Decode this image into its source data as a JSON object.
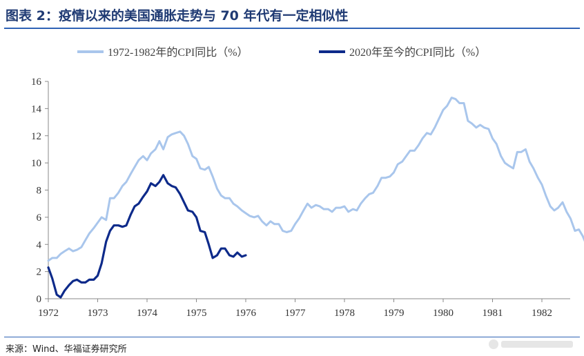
{
  "header": {
    "title": "图表 2：疫情以来的美国通胀走势与 70 年代有一定相似性"
  },
  "footer": {
    "source": "来源：Wind、华福证券研究所"
  },
  "chart_data": {
    "type": "line",
    "title": "图表 2：疫情以来的美国通胀走势与 70 年代有一定相似性",
    "xlabel": "",
    "ylabel": "",
    "ylim": [
      0,
      16
    ],
    "xlim": [
      1972,
      1982.6
    ],
    "yticks": [
      0,
      2,
      4,
      6,
      8,
      10,
      12,
      14,
      16
    ],
    "xticks": [
      1972,
      1973,
      1974,
      1975,
      1976,
      1977,
      1978,
      1979,
      1980,
      1981,
      1982
    ],
    "grid": false,
    "legend_position": "top",
    "series": [
      {
        "name": "1972-1982年的CPI同比（%）",
        "color": "#a9c6ec",
        "points": [
          [
            1972.0,
            2.8
          ],
          [
            1972.08,
            3.0
          ],
          [
            1972.17,
            3.0
          ],
          [
            1972.25,
            3.3
          ],
          [
            1972.33,
            3.5
          ],
          [
            1972.42,
            3.7
          ],
          [
            1972.5,
            3.5
          ],
          [
            1972.58,
            3.6
          ],
          [
            1972.67,
            3.8
          ],
          [
            1972.75,
            4.3
          ],
          [
            1972.83,
            4.8
          ],
          [
            1972.92,
            5.2
          ],
          [
            1973.0,
            5.6
          ],
          [
            1973.08,
            6.0
          ],
          [
            1973.17,
            5.8
          ],
          [
            1973.25,
            7.4
          ],
          [
            1973.33,
            7.4
          ],
          [
            1973.42,
            7.8
          ],
          [
            1973.5,
            8.3
          ],
          [
            1973.58,
            8.6
          ],
          [
            1973.67,
            9.2
          ],
          [
            1973.75,
            9.7
          ],
          [
            1973.83,
            10.2
          ],
          [
            1973.92,
            10.5
          ],
          [
            1974.0,
            10.2
          ],
          [
            1974.08,
            10.7
          ],
          [
            1974.17,
            11.0
          ],
          [
            1974.25,
            11.6
          ],
          [
            1974.33,
            11.0
          ],
          [
            1974.42,
            11.9
          ],
          [
            1974.5,
            12.1
          ],
          [
            1974.58,
            12.2
          ],
          [
            1974.67,
            12.3
          ],
          [
            1974.75,
            12.0
          ],
          [
            1974.83,
            11.4
          ],
          [
            1974.92,
            10.5
          ],
          [
            1975.0,
            10.3
          ],
          [
            1975.08,
            9.6
          ],
          [
            1975.17,
            9.5
          ],
          [
            1975.25,
            9.7
          ],
          [
            1975.33,
            9.0
          ],
          [
            1975.42,
            8.1
          ],
          [
            1975.5,
            7.6
          ],
          [
            1975.58,
            7.4
          ],
          [
            1975.67,
            7.4
          ],
          [
            1975.75,
            7.0
          ],
          [
            1975.83,
            6.8
          ],
          [
            1975.92,
            6.5
          ],
          [
            1976.0,
            6.3
          ],
          [
            1976.08,
            6.1
          ],
          [
            1976.17,
            6.0
          ],
          [
            1976.25,
            6.1
          ],
          [
            1976.33,
            5.7
          ],
          [
            1976.42,
            5.4
          ],
          [
            1976.5,
            5.7
          ],
          [
            1976.58,
            5.5
          ],
          [
            1976.67,
            5.5
          ],
          [
            1976.75,
            5.0
          ],
          [
            1976.83,
            4.9
          ],
          [
            1976.92,
            5.0
          ],
          [
            1977.0,
            5.5
          ],
          [
            1977.08,
            5.9
          ],
          [
            1977.17,
            6.5
          ],
          [
            1977.25,
            7.0
          ],
          [
            1977.33,
            6.7
          ],
          [
            1977.42,
            6.9
          ],
          [
            1977.5,
            6.8
          ],
          [
            1977.58,
            6.6
          ],
          [
            1977.67,
            6.6
          ],
          [
            1977.75,
            6.4
          ],
          [
            1977.83,
            6.7
          ],
          [
            1977.92,
            6.7
          ],
          [
            1978.0,
            6.8
          ],
          [
            1978.08,
            6.4
          ],
          [
            1978.17,
            6.6
          ],
          [
            1978.25,
            6.5
          ],
          [
            1978.33,
            7.0
          ],
          [
            1978.42,
            7.4
          ],
          [
            1978.5,
            7.7
          ],
          [
            1978.58,
            7.8
          ],
          [
            1978.67,
            8.3
          ],
          [
            1978.75,
            8.9
          ],
          [
            1978.83,
            8.9
          ],
          [
            1978.92,
            9.0
          ],
          [
            1979.0,
            9.3
          ],
          [
            1979.08,
            9.9
          ],
          [
            1979.17,
            10.1
          ],
          [
            1979.25,
            10.5
          ],
          [
            1979.33,
            10.9
          ],
          [
            1979.42,
            10.9
          ],
          [
            1979.5,
            11.3
          ],
          [
            1979.58,
            11.8
          ],
          [
            1979.67,
            12.2
          ],
          [
            1979.75,
            12.1
          ],
          [
            1979.83,
            12.6
          ],
          [
            1979.92,
            13.3
          ],
          [
            1980.0,
            13.9
          ],
          [
            1980.08,
            14.2
          ],
          [
            1980.17,
            14.8
          ],
          [
            1980.25,
            14.7
          ],
          [
            1980.33,
            14.4
          ],
          [
            1980.42,
            14.4
          ],
          [
            1980.5,
            13.1
          ],
          [
            1980.58,
            12.9
          ],
          [
            1980.67,
            12.6
          ],
          [
            1980.75,
            12.8
          ],
          [
            1980.83,
            12.6
          ],
          [
            1980.92,
            12.5
          ],
          [
            1981.0,
            11.8
          ],
          [
            1981.08,
            11.4
          ],
          [
            1981.17,
            10.5
          ],
          [
            1981.25,
            10.0
          ],
          [
            1981.33,
            9.8
          ],
          [
            1981.42,
            9.6
          ],
          [
            1981.5,
            10.8
          ],
          [
            1981.58,
            10.8
          ],
          [
            1981.67,
            11.0
          ],
          [
            1981.75,
            10.1
          ],
          [
            1981.83,
            9.6
          ],
          [
            1981.92,
            8.9
          ],
          [
            1982.0,
            8.4
          ],
          [
            1982.08,
            7.6
          ],
          [
            1982.17,
            6.8
          ],
          [
            1982.25,
            6.5
          ],
          [
            1982.33,
            6.7
          ],
          [
            1982.42,
            7.1
          ],
          [
            1982.5,
            6.4
          ],
          [
            1982.58,
            5.9
          ],
          [
            1982.67,
            5.0
          ],
          [
            1982.75,
            5.1
          ],
          [
            1982.83,
            4.6
          ],
          [
            1982.92,
            3.8
          ]
        ]
      },
      {
        "name": "2020年至今的CPI同比（%）",
        "color": "#0d2a8a",
        "points": [
          [
            1972.0,
            2.3
          ],
          [
            1972.08,
            1.5
          ],
          [
            1972.17,
            0.3
          ],
          [
            1972.25,
            0.1
          ],
          [
            1972.33,
            0.6
          ],
          [
            1972.42,
            1.0
          ],
          [
            1972.5,
            1.3
          ],
          [
            1972.58,
            1.4
          ],
          [
            1972.67,
            1.2
          ],
          [
            1972.75,
            1.2
          ],
          [
            1972.83,
            1.4
          ],
          [
            1972.92,
            1.4
          ],
          [
            1973.0,
            1.7
          ],
          [
            1973.08,
            2.6
          ],
          [
            1973.17,
            4.2
          ],
          [
            1973.25,
            5.0
          ],
          [
            1973.33,
            5.4
          ],
          [
            1973.42,
            5.4
          ],
          [
            1973.5,
            5.3
          ],
          [
            1973.58,
            5.4
          ],
          [
            1973.67,
            6.2
          ],
          [
            1973.75,
            6.8
          ],
          [
            1973.83,
            7.0
          ],
          [
            1973.92,
            7.5
          ],
          [
            1974.0,
            7.9
          ],
          [
            1974.08,
            8.5
          ],
          [
            1974.17,
            8.3
          ],
          [
            1974.25,
            8.6
          ],
          [
            1974.33,
            9.1
          ],
          [
            1974.42,
            8.5
          ],
          [
            1974.5,
            8.3
          ],
          [
            1974.58,
            8.2
          ],
          [
            1974.67,
            7.7
          ],
          [
            1974.75,
            7.1
          ],
          [
            1974.83,
            6.5
          ],
          [
            1974.92,
            6.4
          ],
          [
            1975.0,
            6.0
          ],
          [
            1975.08,
            5.0
          ],
          [
            1975.17,
            4.9
          ],
          [
            1975.25,
            4.0
          ],
          [
            1975.33,
            3.0
          ],
          [
            1975.42,
            3.2
          ],
          [
            1975.5,
            3.7
          ],
          [
            1975.58,
            3.7
          ],
          [
            1975.67,
            3.2
          ],
          [
            1975.75,
            3.1
          ],
          [
            1975.83,
            3.4
          ],
          [
            1975.92,
            3.1
          ],
          [
            1976.0,
            3.2
          ]
        ]
      }
    ]
  }
}
